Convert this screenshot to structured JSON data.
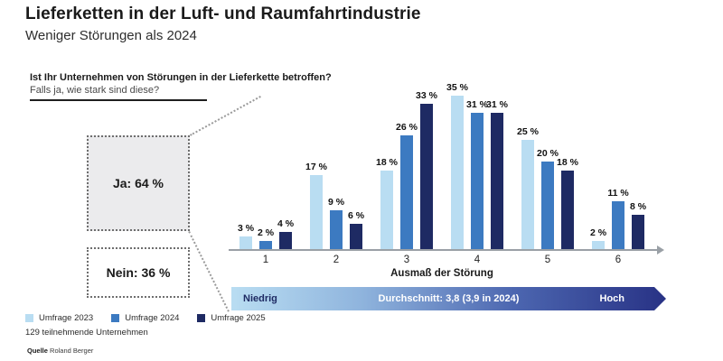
{
  "header": {
    "title": "Lieferketten in der Luft- und Raumfahrtindustrie",
    "subtitle": "Weniger Störungen als 2024"
  },
  "question": {
    "line1": "Ist Ihr Unternehmen von Störungen in der Lieferkette betroffen?",
    "line2": "Falls ja, wie stark sind diese?"
  },
  "split": {
    "yes_label": "Ja: 64 %",
    "no_label": "Nein: 36 %"
  },
  "chart_data": {
    "type": "bar",
    "categories": [
      "1",
      "2",
      "3",
      "4",
      "5",
      "6"
    ],
    "series": [
      {
        "name": "Umfrage 2023",
        "color": "#b9ddf2",
        "values": [
          3,
          17,
          18,
          35,
          25,
          2
        ]
      },
      {
        "name": "Umfrage 2024",
        "color": "#3c7ac1",
        "values": [
          2,
          9,
          26,
          31,
          20,
          11
        ]
      },
      {
        "name": "Umfrage 2025",
        "color": "#1e2a63",
        "values": [
          4,
          6,
          33,
          31,
          18,
          8
        ]
      }
    ],
    "value_suffix": " %",
    "xlabel": "Ausmaß der Störung",
    "ylim": [
      0,
      35
    ],
    "grid": false,
    "legend_position": "bottom-left"
  },
  "scale_bar": {
    "low": "Niedrig",
    "center": "Durchschnitt: 3,8 (3,9 in 2024)",
    "high": "Hoch"
  },
  "footnotes": {
    "sample": "129 teilnehmende Unternehmen",
    "source_label": "Quelle",
    "source_value": "Roland Berger"
  }
}
